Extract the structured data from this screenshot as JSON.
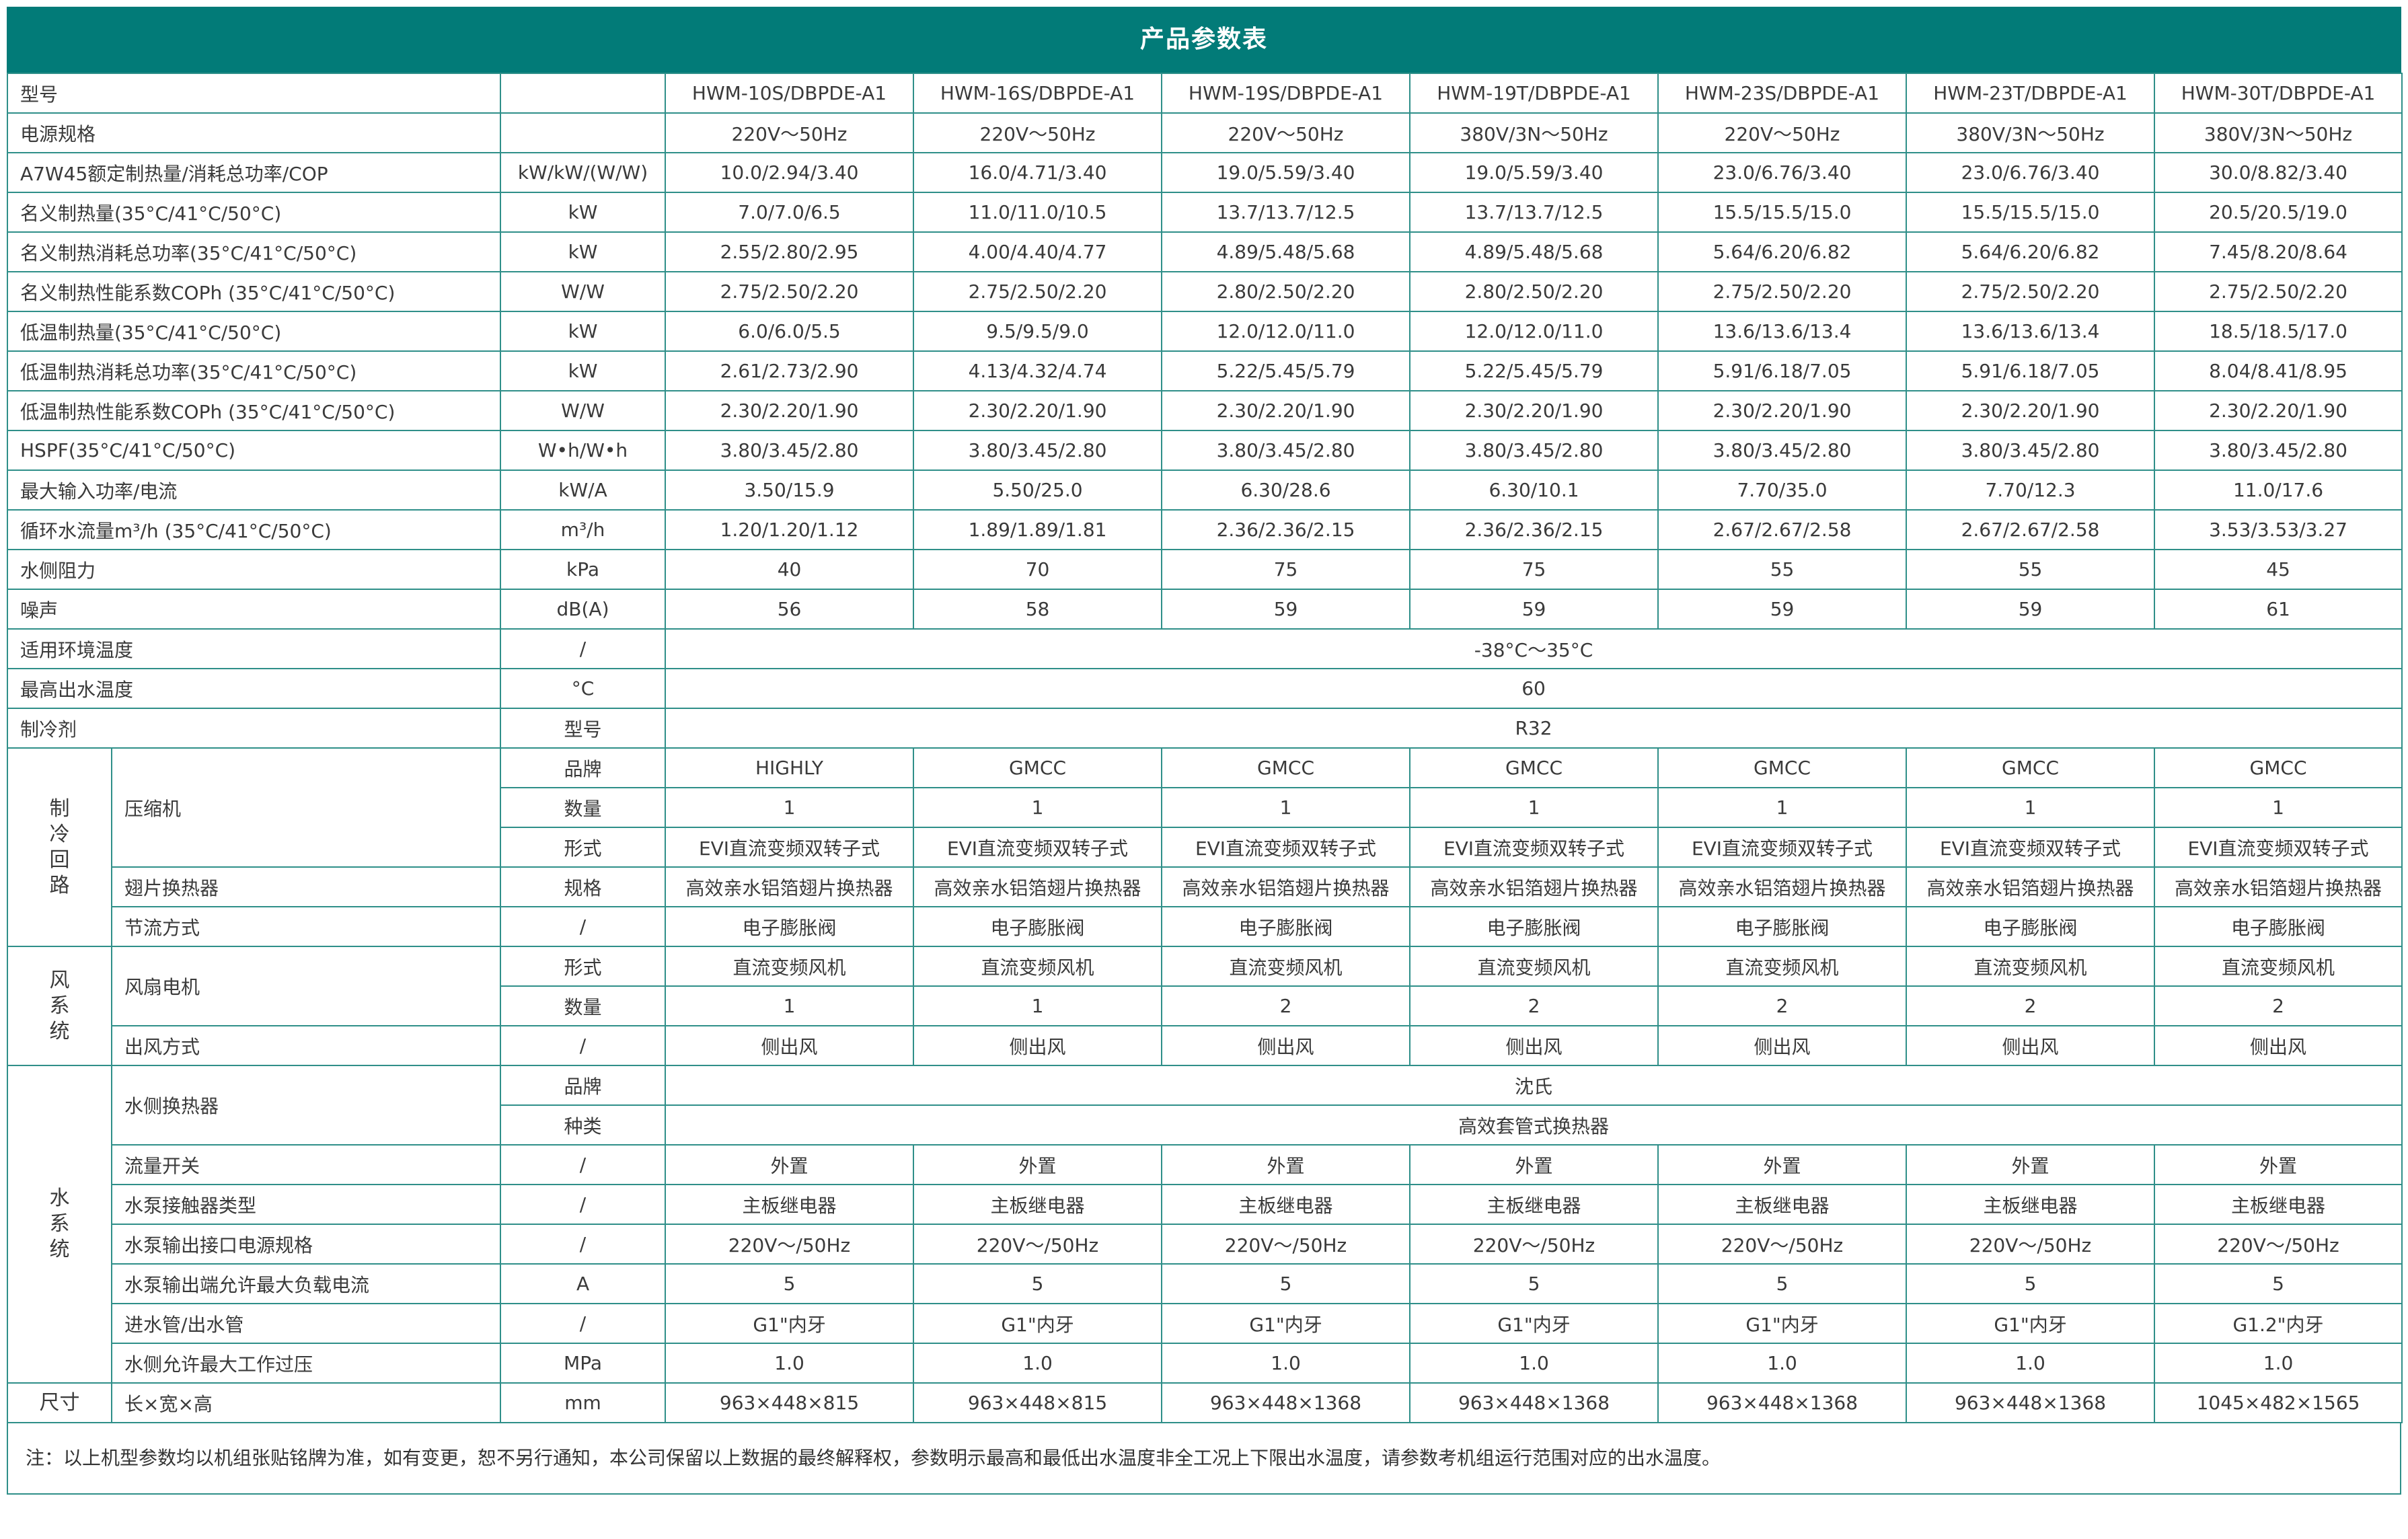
{
  "title": "产品参数表",
  "models": [
    "HWM-10S/DBPDE-A1",
    "HWM-16S/DBPDE-A1",
    "HWM-19S/DBPDE-A1",
    "HWM-19T/DBPDE-A1",
    "HWM-23S/DBPDE-A1",
    "HWM-23T/DBPDE-A1",
    "HWM-30T/DBPDE-A1"
  ],
  "rows": [
    {
      "label": "型号",
      "unit": "",
      "values": [
        "HWM-10S/DBPDE-A1",
        "HWM-16S/DBPDE-A1",
        "HWM-19S/DBPDE-A1",
        "HWM-19T/DBPDE-A1",
        "HWM-23S/DBPDE-A1",
        "HWM-23T/DBPDE-A1",
        "HWM-30T/DBPDE-A1"
      ]
    },
    {
      "label": "电源规格",
      "unit": "",
      "values": [
        "220V～50Hz",
        "220V～50Hz",
        "220V～50Hz",
        "380V/3N～50Hz",
        "220V～50Hz",
        "380V/3N～50Hz",
        "380V/3N～50Hz"
      ]
    },
    {
      "label": "A7W45额定制热量/消耗总功率/COP",
      "unit": "kW/kW/(W/W)",
      "values": [
        "10.0/2.94/3.40",
        "16.0/4.71/3.40",
        "19.0/5.59/3.40",
        "19.0/5.59/3.40",
        "23.0/6.76/3.40",
        "23.0/6.76/3.40",
        "30.0/8.82/3.40"
      ]
    },
    {
      "label": "名义制热量(35°C/41°C/50°C)",
      "unit": "kW",
      "values": [
        "7.0/7.0/6.5",
        "11.0/11.0/10.5",
        "13.7/13.7/12.5",
        "13.7/13.7/12.5",
        "15.5/15.5/15.0",
        "15.5/15.5/15.0",
        "20.5/20.5/19.0"
      ]
    },
    {
      "label": "名义制热消耗总功率(35°C/41°C/50°C)",
      "unit": "kW",
      "values": [
        "2.55/2.80/2.95",
        "4.00/4.40/4.77",
        "4.89/5.48/5.68",
        "4.89/5.48/5.68",
        "5.64/6.20/6.82",
        "5.64/6.20/6.82",
        "7.45/8.20/8.64"
      ]
    },
    {
      "label": "名义制热性能系数COPh (35°C/41°C/50°C)",
      "unit": "W/W",
      "values": [
        "2.75/2.50/2.20",
        "2.75/2.50/2.20",
        "2.80/2.50/2.20",
        "2.80/2.50/2.20",
        "2.75/2.50/2.20",
        "2.75/2.50/2.20",
        "2.75/2.50/2.20"
      ]
    },
    {
      "label": "低温制热量(35°C/41°C/50°C)",
      "unit": "kW",
      "values": [
        "6.0/6.0/5.5",
        "9.5/9.5/9.0",
        "12.0/12.0/11.0",
        "12.0/12.0/11.0",
        "13.6/13.6/13.4",
        "13.6/13.6/13.4",
        "18.5/18.5/17.0"
      ]
    },
    {
      "label": "低温制热消耗总功率(35°C/41°C/50°C)",
      "unit": "kW",
      "values": [
        "2.61/2.73/2.90",
        "4.13/4.32/4.74",
        "5.22/5.45/5.79",
        "5.22/5.45/5.79",
        "5.91/6.18/7.05",
        "5.91/6.18/7.05",
        "8.04/8.41/8.95"
      ]
    },
    {
      "label": "低温制热性能系数COPh (35°C/41°C/50°C)",
      "unit": "W/W",
      "values": [
        "2.30/2.20/1.90",
        "2.30/2.20/1.90",
        "2.30/2.20/1.90",
        "2.30/2.20/1.90",
        "2.30/2.20/1.90",
        "2.30/2.20/1.90",
        "2.30/2.20/1.90"
      ]
    },
    {
      "label": "HSPF(35°C/41°C/50°C)",
      "unit": "W•h/W•h",
      "values": [
        "3.80/3.45/2.80",
        "3.80/3.45/2.80",
        "3.80/3.45/2.80",
        "3.80/3.45/2.80",
        "3.80/3.45/2.80",
        "3.80/3.45/2.80",
        "3.80/3.45/2.80"
      ]
    },
    {
      "label": "最大输入功率/电流",
      "unit": "kW/A",
      "values": [
        "3.50/15.9",
        "5.50/25.0",
        "6.30/28.6",
        "6.30/10.1",
        "7.70/35.0",
        "7.70/12.3",
        "11.0/17.6"
      ]
    },
    {
      "label": "循环水流量m³/h (35°C/41°C/50°C)",
      "unit": "m³/h",
      "values": [
        "1.20/1.20/1.12",
        "1.89/1.89/1.81",
        "2.36/2.36/2.15",
        "2.36/2.36/2.15",
        "2.67/2.67/2.58",
        "2.67/2.67/2.58",
        "3.53/3.53/3.27"
      ]
    },
    {
      "label": "水侧阻力",
      "unit": "kPa",
      "values": [
        "40",
        "70",
        "75",
        "75",
        "55",
        "55",
        "45"
      ]
    },
    {
      "label": "噪声",
      "unit": "dB(A)",
      "values": [
        "56",
        "58",
        "59",
        "59",
        "59",
        "59",
        "61"
      ]
    },
    {
      "label": "适用环境温度",
      "unit": "/",
      "merged": "-38°C～35°C"
    },
    {
      "label": "最高出水温度",
      "unit": "°C",
      "merged": "60"
    },
    {
      "label": "制冷剂",
      "unit": "型号",
      "merged": "R32"
    }
  ],
  "sections": [
    {
      "name": "制冷回路",
      "subrows": [
        {
          "sub": "",
          "unit": "品牌",
          "values": [
            "HIGHLY",
            "GMCC",
            "GMCC",
            "GMCC",
            "GMCC",
            "GMCC",
            "GMCC"
          ]
        },
        {
          "sub": "",
          "unit": "数量",
          "values": [
            "1",
            "1",
            "1",
            "1",
            "1",
            "1",
            "1"
          ]
        },
        {
          "sub": "压缩机",
          "unit": "形式",
          "values": [
            "EVI直流变频双转子式",
            "EVI直流变频双转子式",
            "EVI直流变频双转子式",
            "EVI直流变频双转子式",
            "EVI直流变频双转子式",
            "EVI直流变频双转子式",
            "EVI直流变频双转子式"
          ]
        },
        {
          "sub": "翅片换热器",
          "unit": "规格",
          "values": [
            "高效亲水铝箔翅片换热器",
            "高效亲水铝箔翅片换热器",
            "高效亲水铝箔翅片换热器",
            "高效亲水铝箔翅片换热器",
            "高效亲水铝箔翅片换热器",
            "高效亲水铝箔翅片换热器",
            "高效亲水铝箔翅片换热器"
          ]
        },
        {
          "sub": "节流方式",
          "unit": "/",
          "values": [
            "电子膨胀阀",
            "电子膨胀阀",
            "电子膨胀阀",
            "电子膨胀阀",
            "电子膨胀阀",
            "电子膨胀阀",
            "电子膨胀阀"
          ]
        }
      ]
    },
    {
      "name": "风系统",
      "subrows": [
        {
          "sub": "风扇电机",
          "unit": "形式",
          "values": [
            "直流变频风机",
            "直流变频风机",
            "直流变频风机",
            "直流变频风机",
            "直流变频风机",
            "直流变频风机",
            "直流变频风机"
          ]
        },
        {
          "sub": "",
          "unit": "数量",
          "values": [
            "1",
            "1",
            "2",
            "2",
            "2",
            "2",
            "2"
          ]
        },
        {
          "sub": "出风方式",
          "unit": "/",
          "values": [
            "侧出风",
            "侧出风",
            "侧出风",
            "侧出风",
            "侧出风",
            "侧出风",
            "侧出风"
          ]
        }
      ]
    },
    {
      "name": "水系统",
      "subrows": [
        {
          "sub": "水侧换热器",
          "unit": "品牌",
          "merged": "沈氏"
        },
        {
          "sub": "",
          "unit": "种类",
          "merged": "高效套管式换热器"
        },
        {
          "sub": "流量开关",
          "unit": "/",
          "values": [
            "外置",
            "外置",
            "外置",
            "外置",
            "外置",
            "外置",
            "外置"
          ]
        },
        {
          "sub": "水泵接触器类型",
          "unit": "/",
          "values": [
            "主板继电器",
            "主板继电器",
            "主板继电器",
            "主板继电器",
            "主板继电器",
            "主板继电器",
            "主板继电器"
          ]
        },
        {
          "sub": "水泵输出接口电源规格",
          "unit": "/",
          "values": [
            "220V～/50Hz",
            "220V～/50Hz",
            "220V～/50Hz",
            "220V～/50Hz",
            "220V～/50Hz",
            "220V～/50Hz",
            "220V～/50Hz"
          ]
        },
        {
          "sub": "水泵输出端允许最大负载电流",
          "unit": "A",
          "values": [
            "5",
            "5",
            "5",
            "5",
            "5",
            "5",
            "5"
          ]
        },
        {
          "sub": "进水管/出水管",
          "unit": "/",
          "values": [
            "G1\"内牙",
            "G1\"内牙",
            "G1\"内牙",
            "G1\"内牙",
            "G1\"内牙",
            "G1\"内牙",
            "G1.2\"内牙"
          ]
        },
        {
          "sub": "水侧允许最大工作过压",
          "unit": "MPa",
          "values": [
            "1.0",
            "1.0",
            "1.0",
            "1.0",
            "1.0",
            "1.0",
            "1.0"
          ]
        }
      ]
    },
    {
      "name": "尺寸",
      "subrows": [
        {
          "sub": "长×宽×高",
          "unit": "mm",
          "values": [
            "963×448×815",
            "963×448×815",
            "963×448×1368",
            "963×448×1368",
            "963×448×1368",
            "963×448×1368",
            "1045×482×1565"
          ]
        }
      ]
    }
  ],
  "note": "注：以上机型参数均以机组张贴铭牌为准，如有变更，恕不另行通知，本公司保留以上数据的最终解释权，参数明示最高和最低出水温度非全工况上下限出水温度，请参数考机组运行范围对应的出水温度。"
}
